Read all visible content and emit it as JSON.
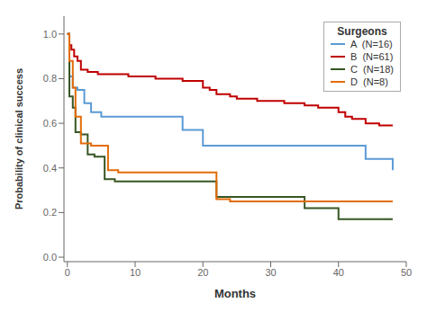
{
  "chart_data": {
    "type": "step",
    "xlabel": "Months",
    "ylabel": "Probability of clinical success",
    "xlim": [
      -0.5,
      50
    ],
    "ylim": [
      -0.02,
      1.08
    ],
    "xticks": [
      0,
      10,
      20,
      30,
      40,
      50
    ],
    "yticks": [
      {
        "value": 0,
        "label": "0.0"
      },
      {
        "value": 0.2,
        "label": "0.2"
      },
      {
        "value": 0.4,
        "label": "0.4"
      },
      {
        "value": 0.6,
        "label": "0.6"
      },
      {
        "value": 0.8,
        "label": "0.8"
      },
      {
        "value": 1,
        "label": "1.0"
      }
    ],
    "legend": "upper right",
    "legend_title": "Surgeons",
    "series": [
      {
        "name": "A  (N=16)",
        "color": "#5B9BD5",
        "x": [
          0,
          0.3,
          0.8,
          1.5,
          2.5,
          3.5,
          5,
          7,
          8,
          12,
          17,
          20,
          22,
          30,
          38,
          40,
          44,
          48
        ],
        "values": [
          1.0,
          0.81,
          0.76,
          0.75,
          0.69,
          0.65,
          0.63,
          0.63,
          0.63,
          0.63,
          0.57,
          0.5,
          0.5,
          0.5,
          0.5,
          0.5,
          0.44,
          0.39
        ]
      },
      {
        "name": "B  (N=61)",
        "color": "#C00000",
        "x": [
          0,
          0.3,
          0.6,
          1.0,
          1.5,
          2.0,
          3.0,
          4.5,
          7,
          9,
          11,
          13,
          15,
          17,
          19,
          20,
          21,
          22,
          24,
          25,
          27,
          28,
          30,
          32,
          33,
          35,
          37,
          38,
          40,
          41,
          42,
          44,
          46,
          48
        ],
        "values": [
          1.0,
          0.95,
          0.93,
          0.9,
          0.88,
          0.84,
          0.83,
          0.82,
          0.82,
          0.81,
          0.81,
          0.8,
          0.8,
          0.79,
          0.79,
          0.76,
          0.75,
          0.73,
          0.72,
          0.71,
          0.71,
          0.7,
          0.7,
          0.69,
          0.69,
          0.68,
          0.67,
          0.67,
          0.65,
          0.63,
          0.62,
          0.6,
          0.59,
          0.59
        ]
      },
      {
        "name": "C  (N=18)",
        "color": "#375623",
        "x": [
          0,
          0.3,
          0.8,
          1.2,
          2.0,
          3.0,
          4.0,
          5.5,
          7.0,
          10,
          22,
          25,
          35,
          40,
          48
        ],
        "values": [
          1.0,
          0.72,
          0.67,
          0.56,
          0.55,
          0.46,
          0.45,
          0.35,
          0.34,
          0.34,
          0.27,
          0.27,
          0.22,
          0.17,
          0.17
        ]
      },
      {
        "name": "D  (N=8)",
        "color": "#E36C09",
        "x": [
          0,
          0.3,
          0.8,
          1.2,
          2.0,
          3.5,
          6.0,
          7.5,
          22,
          24,
          48
        ],
        "values": [
          1.0,
          0.88,
          0.76,
          0.63,
          0.51,
          0.5,
          0.39,
          0.38,
          0.26,
          0.25,
          0.25
        ]
      }
    ]
  }
}
